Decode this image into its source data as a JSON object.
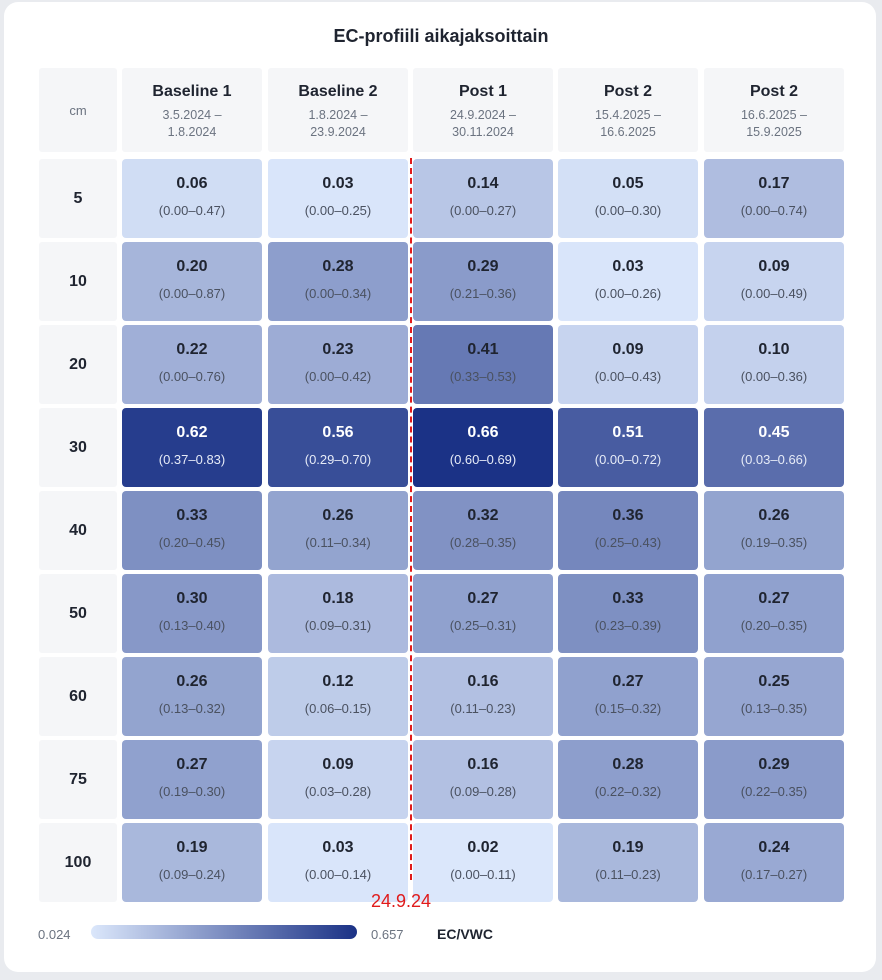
{
  "chart_data": {
    "type": "heatmap",
    "title": "EC-profiili aikajaksoittain",
    "row_axis_label": "cm",
    "columns": [
      {
        "name": "Baseline 1",
        "dates": "3.5.2024 –\n1.8.2024"
      },
      {
        "name": "Baseline 2",
        "dates": "1.8.2024 –\n23.9.2024"
      },
      {
        "name": "Post 1",
        "dates": "24.9.2024 –\n30.11.2024"
      },
      {
        "name": "Post 2",
        "dates": "15.4.2025 –\n16.6.2025"
      },
      {
        "name": "Post 2",
        "dates": "16.6.2025 –\n15.9.2025"
      }
    ],
    "depths": [
      "5",
      "10",
      "20",
      "30",
      "40",
      "50",
      "60",
      "75",
      "100"
    ],
    "values": [
      [
        0.06,
        0.03,
        0.14,
        0.05,
        0.17
      ],
      [
        0.2,
        0.28,
        0.29,
        0.03,
        0.09
      ],
      [
        0.22,
        0.23,
        0.41,
        0.09,
        0.1
      ],
      [
        0.62,
        0.56,
        0.66,
        0.51,
        0.45
      ],
      [
        0.33,
        0.26,
        0.32,
        0.36,
        0.26
      ],
      [
        0.3,
        0.18,
        0.27,
        0.33,
        0.27
      ],
      [
        0.26,
        0.12,
        0.16,
        0.27,
        0.25
      ],
      [
        0.27,
        0.09,
        0.16,
        0.28,
        0.29
      ],
      [
        0.19,
        0.03,
        0.02,
        0.19,
        0.24
      ]
    ],
    "ranges": [
      [
        "(0.00–0.47)",
        "(0.00–0.25)",
        "(0.00–0.27)",
        "(0.00–0.30)",
        "(0.00–0.74)"
      ],
      [
        "(0.00–0.87)",
        "(0.00–0.34)",
        "(0.21–0.36)",
        "(0.00–0.26)",
        "(0.00–0.49)"
      ],
      [
        "(0.00–0.76)",
        "(0.00–0.42)",
        "(0.33–0.53)",
        "(0.00–0.43)",
        "(0.00–0.36)"
      ],
      [
        "(0.37–0.83)",
        "(0.29–0.70)",
        "(0.60–0.69)",
        "(0.00–0.72)",
        "(0.03–0.66)"
      ],
      [
        "(0.20–0.45)",
        "(0.11–0.34)",
        "(0.28–0.35)",
        "(0.25–0.43)",
        "(0.19–0.35)"
      ],
      [
        "(0.13–0.40)",
        "(0.09–0.31)",
        "(0.25–0.31)",
        "(0.23–0.39)",
        "(0.20–0.35)"
      ],
      [
        "(0.13–0.32)",
        "(0.06–0.15)",
        "(0.11–0.23)",
        "(0.15–0.32)",
        "(0.13–0.35)"
      ],
      [
        "(0.19–0.30)",
        "(0.03–0.28)",
        "(0.09–0.28)",
        "(0.22–0.32)",
        "(0.22–0.35)"
      ],
      [
        "(0.09–0.24)",
        "(0.00–0.14)",
        "(0.00–0.11)",
        "(0.11–0.23)",
        "(0.17–0.27)"
      ]
    ],
    "color_scale": {
      "min": 0.024,
      "max": 0.657,
      "min_label": "0.024",
      "max_label": "0.657",
      "unit": "EC/VWC",
      "min_color": "#dbe7fb",
      "max_color": "#1b3286"
    },
    "annotation": {
      "label": "24.9.24",
      "color": "#e01b1b",
      "between_columns": [
        1,
        2
      ]
    }
  }
}
